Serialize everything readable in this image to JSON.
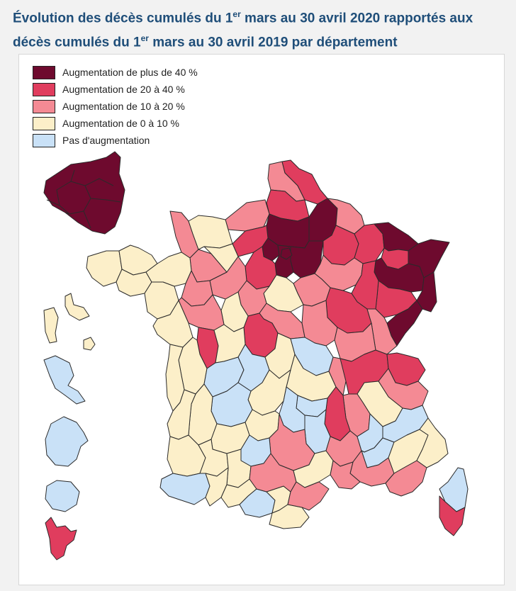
{
  "title": {
    "line1_a": "Évolution des décès cumulés du 1",
    "line1_sup": "er",
    "line1_b": " mars au 30 avril 2020 rapportés aux",
    "line2_a": "décès cumulés du 1",
    "line2_sup": "er",
    "line2_b": " mars au 30 avril 2019 par département"
  },
  "legend": [
    {
      "label": "Augmentation de plus de 40 %",
      "color": "#6e0a2e"
    },
    {
      "label": "Augmentation de 20 à 40 %",
      "color": "#e03d5e"
    },
    {
      "label": "Augmentation de 10 à 20 %",
      "color": "#f48a94"
    },
    {
      "label": "Augmentation de 0 à 10 %",
      "color": "#fcefc9"
    },
    {
      "label": "Pas d'augmentation",
      "color": "#c9e1f7"
    }
  ],
  "colors": {
    "c40": "#6e0a2e",
    "c20": "#e03d5e",
    "c10": "#f48a94",
    "c0": "#fcefc9",
    "cneg": "#c9e1f7",
    "title": "#1f4e79"
  }
}
